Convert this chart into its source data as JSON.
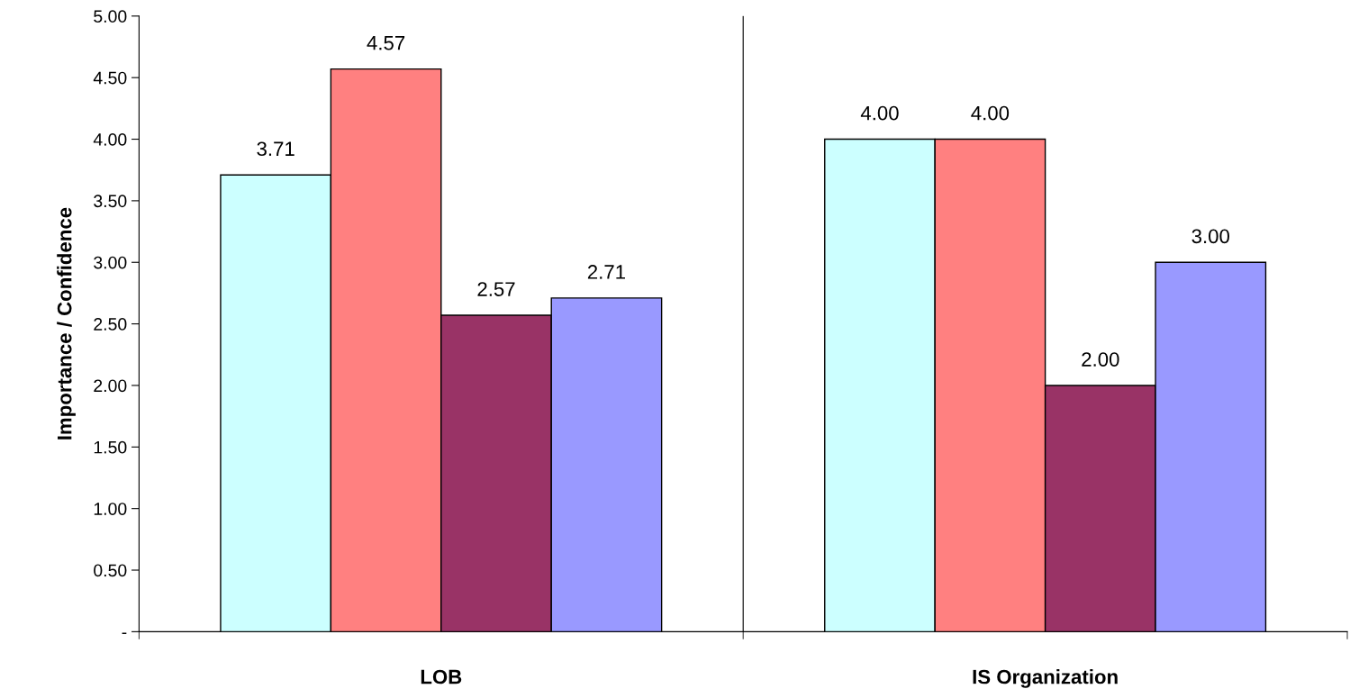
{
  "chart_data": {
    "type": "bar",
    "ylabel": "Importance / Confidence",
    "categories": [
      "LOB",
      "IS Organization"
    ],
    "series": [
      {
        "color": "#ccffff",
        "values": [
          3.71,
          4.0
        ],
        "value_labels": [
          "3.71",
          "4.00"
        ]
      },
      {
        "color": "#ff8080",
        "values": [
          4.57,
          4.0
        ],
        "value_labels": [
          "4.57",
          "4.00"
        ]
      },
      {
        "color": "#993366",
        "values": [
          2.57,
          2.0
        ],
        "value_labels": [
          "2.57",
          "2.00"
        ]
      },
      {
        "color": "#9999ff",
        "values": [
          2.71,
          3.0
        ],
        "value_labels": [
          "2.71",
          "3.00"
        ]
      }
    ],
    "ylim": [
      0,
      5
    ],
    "yticks": [
      {
        "value": 0,
        "label": "-"
      },
      {
        "value": 0.5,
        "label": "0.50"
      },
      {
        "value": 1,
        "label": "1.00"
      },
      {
        "value": 1.5,
        "label": "1.50"
      },
      {
        "value": 2,
        "label": "2.00"
      },
      {
        "value": 2.5,
        "label": "2.50"
      },
      {
        "value": 3,
        "label": "3.00"
      },
      {
        "value": 3.5,
        "label": "3.50"
      },
      {
        "value": 4,
        "label": "4.00"
      },
      {
        "value": 4.5,
        "label": "4.50"
      },
      {
        "value": 5,
        "label": "5.00"
      }
    ],
    "grid": "x",
    "legend": false
  }
}
